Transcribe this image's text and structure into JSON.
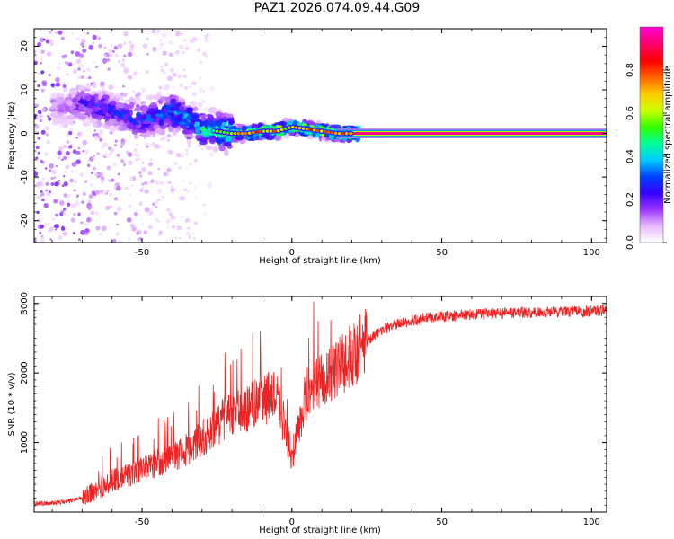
{
  "title": "PAZ1.2026.074.09.44.G09",
  "colorbar": {
    "label": "Normalized spectral amplitude",
    "ticks": [
      "0.0",
      "0.2",
      "0.4",
      "0.6",
      "0.8"
    ],
    "tick_values": [
      0.0,
      0.2,
      0.4,
      0.6,
      0.8
    ],
    "range": [
      0,
      1
    ],
    "colormap": [
      "#ffffff",
      "#e6b8ff",
      "#9933ff",
      "#3300ff",
      "#0044ff",
      "#00ccff",
      "#00ff99",
      "#33ff00",
      "#ccff00",
      "#ffcc00",
      "#ff6600",
      "#ff0000",
      "#ff0066",
      "#ff00cc"
    ]
  },
  "chart_data": [
    {
      "type": "heatmap",
      "name": "spectrogram",
      "xlabel": "Height of straight line (km)",
      "ylabel": "Frequency (Hz)",
      "xlim": [
        -86,
        105
      ],
      "ylim": [
        -25,
        24
      ],
      "xticks": [
        -50,
        0,
        50,
        100
      ],
      "xtick_labels": [
        "-50",
        "0",
        "50",
        "100"
      ],
      "yticks": [
        -20,
        -10,
        0,
        10,
        20
      ],
      "ytick_labels": [
        "-20",
        "-10",
        "0",
        "10",
        "20"
      ],
      "value_label": "Normalized spectral amplitude",
      "ridge": {
        "description": "dominant frequency versus height",
        "x": [
          -75,
          -70,
          -65,
          -60,
          -55,
          -50,
          -45,
          -40,
          -35,
          -30,
          -25,
          -20,
          -15,
          -10,
          -5,
          0,
          5,
          10,
          15,
          20,
          30,
          50,
          75,
          105
        ],
        "freq_hz": [
          6,
          7,
          6,
          5,
          4,
          3,
          4,
          5,
          3,
          1,
          0.5,
          0,
          0,
          0.5,
          0.5,
          1.5,
          1,
          0.5,
          0,
          0,
          0,
          0,
          0,
          0
        ],
        "amplitude": [
          0.15,
          0.25,
          0.3,
          0.3,
          0.3,
          0.35,
          0.35,
          0.4,
          0.45,
          0.5,
          0.55,
          0.7,
          0.75,
          0.8,
          0.8,
          0.75,
          0.8,
          0.8,
          0.85,
          0.9,
          0.95,
          0.95,
          0.95,
          0.95
        ]
      }
    },
    {
      "type": "line",
      "name": "snr",
      "xlabel": "Height of straight line (km)",
      "ylabel": "SNR (10 * v/v)",
      "xlim": [
        -86,
        105
      ],
      "ylim": [
        0,
        3100
      ],
      "xticks": [
        -50,
        0,
        50,
        100
      ],
      "xtick_labels": [
        "-50",
        "0",
        "50",
        "100"
      ],
      "yticks": [
        1000,
        2000,
        3000
      ],
      "ytick_labels": [
        "1000",
        "2000",
        "3000"
      ],
      "color": "#ee2222",
      "series": [
        {
          "name": "SNR",
          "x": [
            -86,
            -80,
            -75,
            -70,
            -65,
            -60,
            -55,
            -50,
            -45,
            -40,
            -35,
            -30,
            -25,
            -20,
            -15,
            -10,
            -5,
            0,
            5,
            10,
            15,
            20,
            25,
            30,
            35,
            40,
            45,
            50,
            55,
            60,
            65,
            70,
            75,
            80,
            85,
            90,
            95,
            100,
            105
          ],
          "y": [
            120,
            130,
            150,
            200,
            330,
            450,
            540,
            620,
            700,
            800,
            900,
            1050,
            1250,
            1420,
            1500,
            1600,
            1700,
            800,
            1750,
            1900,
            2050,
            2250,
            2450,
            2620,
            2700,
            2750,
            2790,
            2810,
            2830,
            2840,
            2850,
            2860,
            2865,
            2870,
            2875,
            2880,
            2885,
            2890,
            2895
          ]
        }
      ]
    }
  ]
}
